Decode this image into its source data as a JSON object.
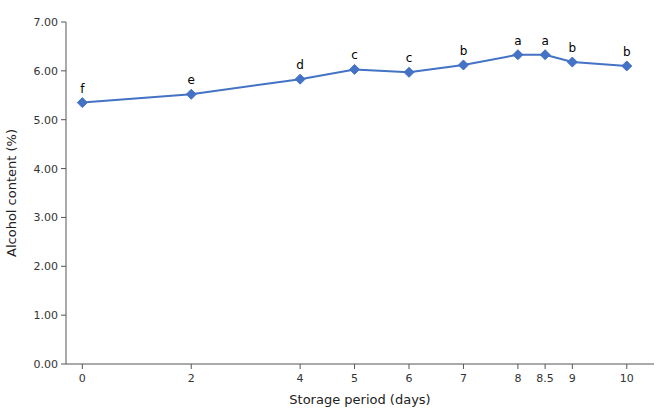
{
  "chart_data": {
    "type": "line",
    "x": [
      0,
      2,
      4,
      5,
      6,
      7,
      8,
      8.5,
      9,
      10
    ],
    "values": [
      5.35,
      5.52,
      5.83,
      6.03,
      5.97,
      6.12,
      6.33,
      6.33,
      6.18,
      6.1
    ],
    "annotations": [
      "f",
      "e",
      "d",
      "c",
      "c",
      "b",
      "a",
      "a",
      "b",
      "b"
    ],
    "color": "#4472C4",
    "marker": "diamond",
    "xlabel": "Storage period (days)",
    "ylabel": "Alcohol content (%)",
    "xlim": [
      -0.3,
      10.5
    ],
    "ylim": [
      0,
      7.0
    ],
    "xticks": [
      0,
      2,
      4,
      5,
      6,
      7,
      8,
      8.5,
      9,
      10
    ],
    "yticks": [
      {
        "value": 0.0,
        "label": "0.00"
      },
      {
        "value": 1.0,
        "label": "1.00"
      },
      {
        "value": 2.0,
        "label": "2.00"
      },
      {
        "value": 3.0,
        "label": "3.00"
      },
      {
        "value": 4.0,
        "label": "4.00"
      },
      {
        "value": 5.0,
        "label": "5.00"
      },
      {
        "value": 6.0,
        "label": "6.00"
      },
      {
        "value": 7.0,
        "label": "7.00"
      }
    ],
    "grid": false
  }
}
